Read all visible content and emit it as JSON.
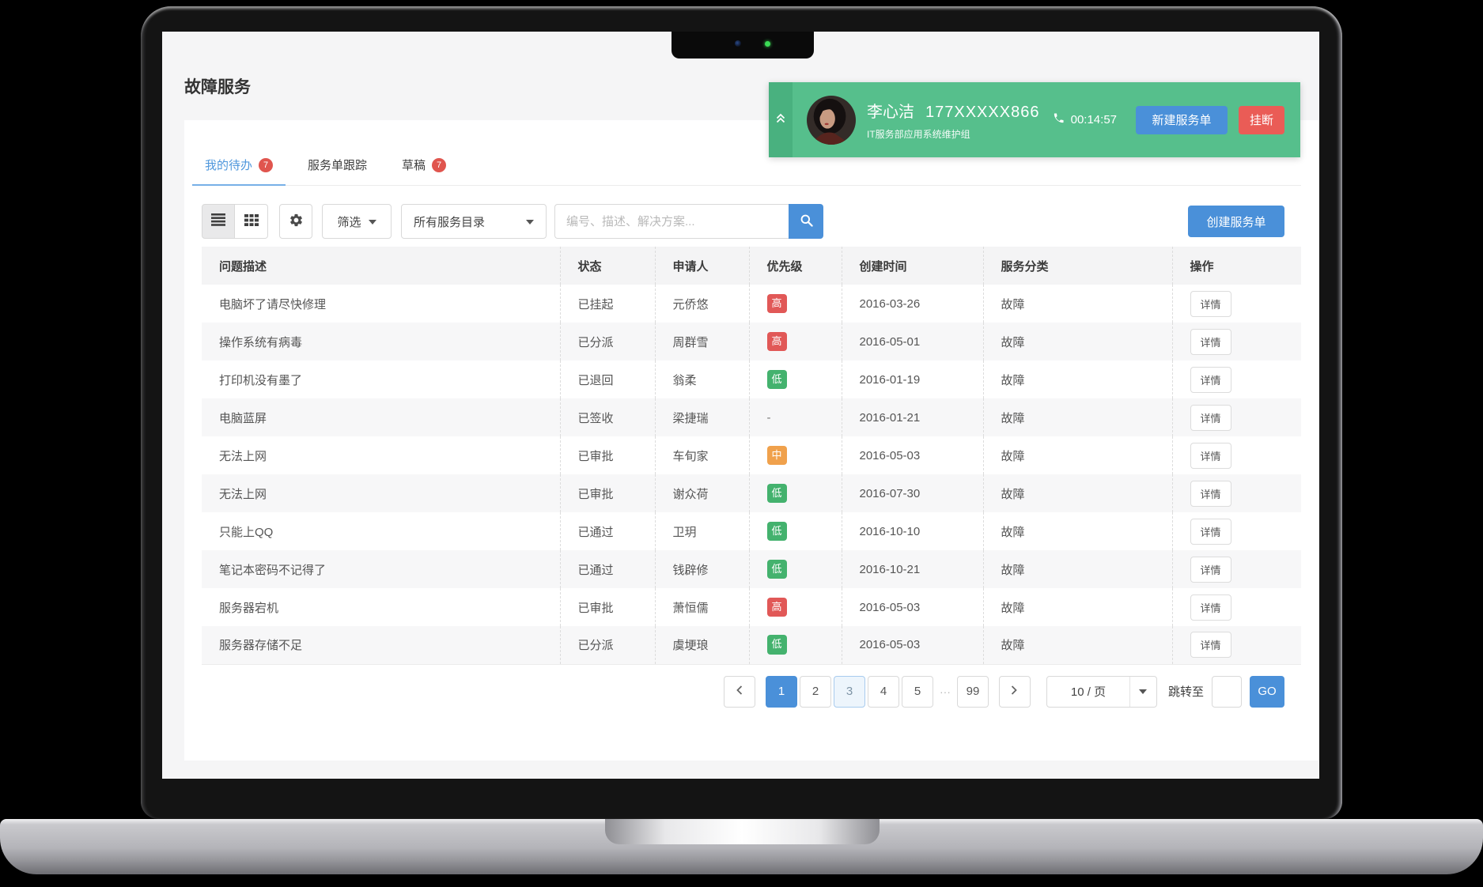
{
  "page": {
    "title": "故障服务"
  },
  "call_bar": {
    "name": "李心洁",
    "phone": "177XXXXX866",
    "department": "IT服务部应用系统维护组",
    "timer": "00:14:57",
    "new_ticket_label": "新建服务单",
    "hangup_label": "挂断",
    "colors": {
      "bar": "#56bf8c",
      "strip": "#49b17f",
      "new_ticket": "#4a90d9",
      "hangup": "#ea5c56"
    }
  },
  "tabs": [
    {
      "label": "我的待办",
      "badge": "7",
      "active": true
    },
    {
      "label": "服务单跟踪",
      "badge": null,
      "active": false
    },
    {
      "label": "草稿",
      "badge": "7",
      "active": false
    }
  ],
  "toolbar": {
    "filter_label": "筛选",
    "catalog_label": "所有服务目录",
    "search_placeholder": "编号、描述、解决方案...",
    "create_label": "创建服务单"
  },
  "table": {
    "columns": [
      "问题描述",
      "状态",
      "申请人",
      "优先级",
      "创建时间",
      "服务分类",
      "操作"
    ],
    "action_label": "详情",
    "priority_colors": {
      "high": "#e15857",
      "medium": "#f0a14c",
      "low": "#44b26e"
    },
    "rows": [
      {
        "desc": "电脑坏了请尽快修理",
        "status": "已挂起",
        "applicant": "元侨悠",
        "priority": "高",
        "priority_level": "high",
        "created": "2016-03-26",
        "category": "故障"
      },
      {
        "desc": "操作系统有病毒",
        "status": "已分派",
        "applicant": "周群雪",
        "priority": "高",
        "priority_level": "high",
        "created": "2016-05-01",
        "category": "故障"
      },
      {
        "desc": "打印机没有墨了",
        "status": "已退回",
        "applicant": "翁柔",
        "priority": "低",
        "priority_level": "low",
        "created": "2016-01-19",
        "category": "故障"
      },
      {
        "desc": "电脑蓝屏",
        "status": "已签收",
        "applicant": "梁捷瑞",
        "priority": "-",
        "priority_level": "none",
        "created": "2016-01-21",
        "category": "故障"
      },
      {
        "desc": "无法上网",
        "status": "已审批",
        "applicant": "车旬家",
        "priority": "中",
        "priority_level": "medium",
        "created": "2016-05-03",
        "category": "故障"
      },
      {
        "desc": "无法上网",
        "status": "已审批",
        "applicant": "谢众荷",
        "priority": "低",
        "priority_level": "low",
        "created": "2016-07-30",
        "category": "故障"
      },
      {
        "desc": "只能上QQ",
        "status": "已通过",
        "applicant": "卫玥",
        "priority": "低",
        "priority_level": "low",
        "created": "2016-10-10",
        "category": "故障"
      },
      {
        "desc": "笔记本密码不记得了",
        "status": "已通过",
        "applicant": "钱辟修",
        "priority": "低",
        "priority_level": "low",
        "created": "2016-10-21",
        "category": "故障"
      },
      {
        "desc": "服务器宕机",
        "status": "已审批",
        "applicant": "萧恒儒",
        "priority": "高",
        "priority_level": "high",
        "created": "2016-05-03",
        "category": "故障"
      },
      {
        "desc": "服务器存储不足",
        "status": "已分派",
        "applicant": "虞埂琅",
        "priority": "低",
        "priority_level": "low",
        "created": "2016-05-03",
        "category": "故障"
      }
    ]
  },
  "pagination": {
    "pages": [
      {
        "label": "1",
        "state": "active"
      },
      {
        "label": "2",
        "state": "normal"
      },
      {
        "label": "3",
        "state": "focused"
      },
      {
        "label": "4",
        "state": "normal"
      },
      {
        "label": "5",
        "state": "normal"
      },
      {
        "label": "···",
        "state": "ellipsis"
      },
      {
        "label": "99",
        "state": "normal"
      }
    ],
    "page_size_label": "10 / 页",
    "jump_label": "跳转至",
    "jump_value": "",
    "go_label": "GO"
  },
  "icons": {
    "collapse": "chevrons-up-icon",
    "phone": "phone-icon",
    "list_view": "list-icon",
    "grid_view": "grid-icon",
    "settings": "gear-icon",
    "dropdown": "caret-down-icon",
    "search": "search-icon",
    "prev": "chevron-left-icon",
    "next": "chevron-right-icon"
  },
  "colors": {
    "primary": "#4a90d9",
    "tab_active": "#4f97dc",
    "badge": "#e0554e",
    "screen_bg": "#f5f5f6",
    "card_bg": "#ffffff",
    "header_bg": "#f4f4f5",
    "stripe": "#f7f7f8"
  }
}
